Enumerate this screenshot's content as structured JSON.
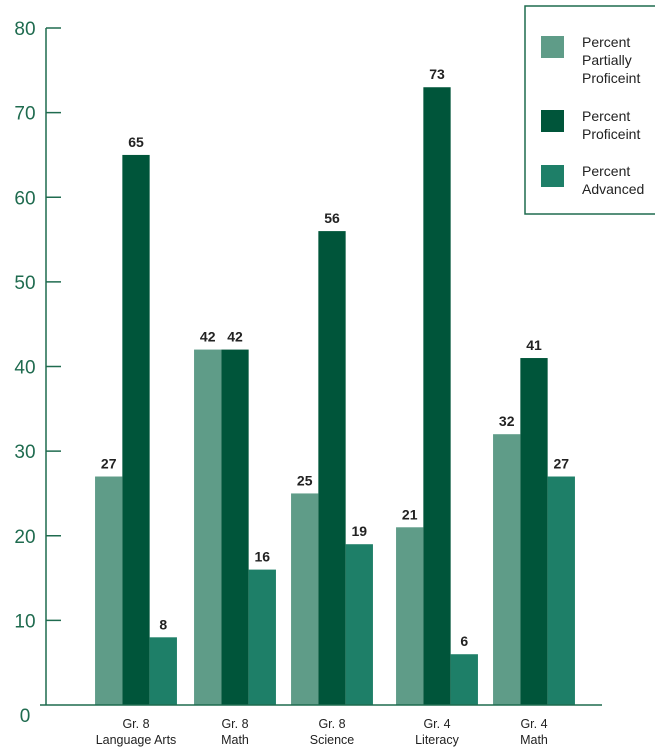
{
  "chart_data": {
    "type": "bar",
    "categories": [
      [
        "Gr. 8",
        "Language Arts"
      ],
      [
        "Gr. 8",
        "Math"
      ],
      [
        "Gr. 8",
        "Science"
      ],
      [
        "Gr. 4",
        "Literacy"
      ],
      [
        "Gr. 4",
        "Math"
      ]
    ],
    "series": [
      {
        "name": "Percent Partially Proficeint",
        "name_lines": [
          "Percent",
          "Partially",
          "Proficeint"
        ],
        "color": "#5f9c88",
        "values": [
          27,
          42,
          25,
          21,
          32
        ]
      },
      {
        "name": "Percent Proficeint",
        "name_lines": [
          "Percent",
          "Proficeint"
        ],
        "color": "#00553a",
        "values": [
          65,
          42,
          56,
          73,
          41
        ]
      },
      {
        "name": "Percent Advanced",
        "name_lines": [
          "Percent",
          "Advanced"
        ],
        "color": "#1e7f68",
        "values": [
          8,
          16,
          19,
          6,
          27
        ]
      }
    ],
    "ylim": [
      0,
      80
    ],
    "yticks": [
      0,
      10,
      20,
      30,
      40,
      50,
      60,
      70,
      80
    ],
    "grid": false,
    "legend_position": "top-right",
    "axis_color": "#1f6b4f"
  }
}
